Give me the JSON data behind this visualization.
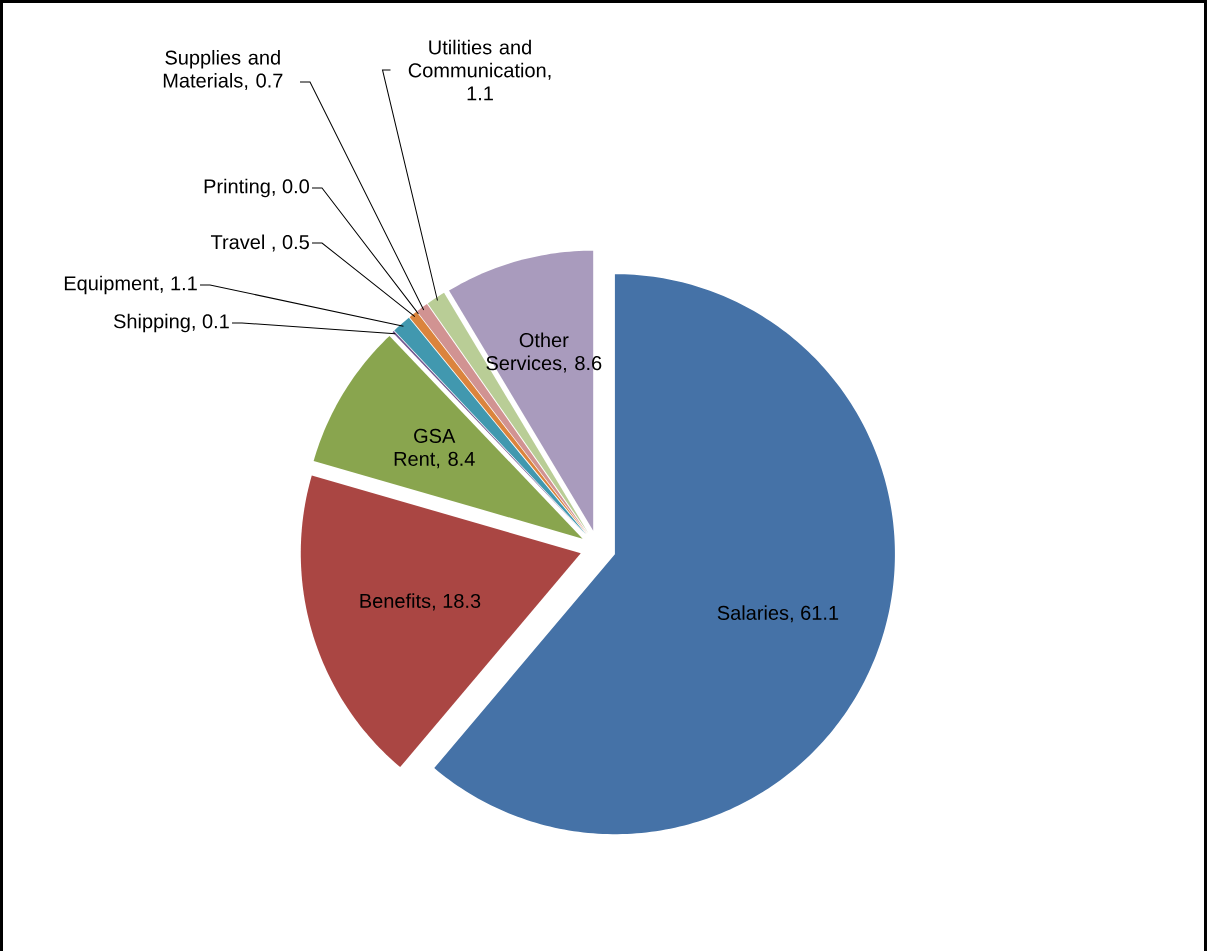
{
  "chart_data": {
    "type": "pie",
    "categories": [
      "Salaries",
      "Benefits",
      "GSA Rent",
      "Shipping",
      "Equipment",
      "Travel ",
      "Printing",
      "Supplies and Materials",
      "Utilities and Communication",
      "Other Services"
    ],
    "values": [
      61.1,
      18.3,
      8.4,
      0.1,
      1.1,
      0.5,
      0.0,
      0.7,
      1.1,
      8.6
    ],
    "colors": [
      "#4572a7",
      "#aa4643",
      "#89a54e",
      "#71588f",
      "#4198af",
      "#db843d",
      "#93a9cf",
      "#d19392",
      "#b9cd96",
      "#a99bbd"
    ],
    "value_labels": [
      ", 61.1",
      ", 18.3",
      ", 8.4",
      ", 0.1",
      ", 1.1",
      ", 0.5",
      ", 0.0",
      ", 0.7",
      ", 1.1",
      ", 8.6"
    ]
  }
}
